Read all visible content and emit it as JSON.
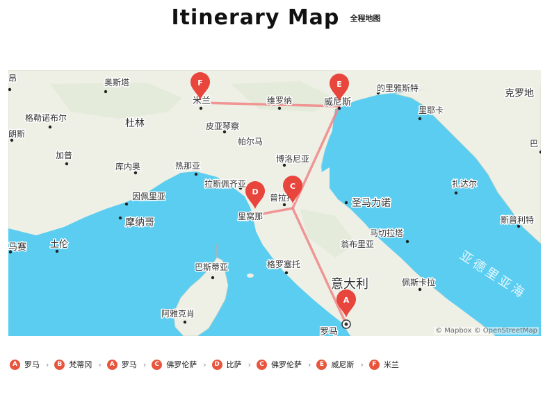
{
  "header": {
    "title": "Itinerary Map",
    "subtitle": "全程地图"
  },
  "map": {
    "attribution": "© Mapbox © OpenStreetMap",
    "colors": {
      "sea": "#5bcdf0",
      "land": "#eef0e6",
      "route": "#f08585",
      "marker": "#e8453c"
    },
    "cities": [
      {
        "name": "奥斯塔"
      },
      {
        "name": "米兰"
      },
      {
        "name": "维罗纳"
      },
      {
        "name": "威尼斯"
      },
      {
        "name": "的里雅斯特"
      },
      {
        "name": "克罗地"
      },
      {
        "name": "里耶卡"
      },
      {
        "name": "昂"
      },
      {
        "name": "格勒诺布尔"
      },
      {
        "name": "杜林"
      },
      {
        "name": "皮亚琴察"
      },
      {
        "name": "帕尔马"
      },
      {
        "name": "朗斯"
      },
      {
        "name": "加普"
      },
      {
        "name": "库内奥"
      },
      {
        "name": "热那亚"
      },
      {
        "name": "博洛尼亚"
      },
      {
        "name": "拉斯佩齐亚"
      },
      {
        "name": "普拉托"
      },
      {
        "name": "圣马力诺"
      },
      {
        "name": "巴"
      },
      {
        "name": "扎达尔"
      },
      {
        "name": "因佩里亚"
      },
      {
        "name": "摩纳哥"
      },
      {
        "name": "里窝那"
      },
      {
        "name": "马切拉塔"
      },
      {
        "name": "斯普利特"
      },
      {
        "name": "马赛"
      },
      {
        "name": "土伦"
      },
      {
        "name": "翁布里亚"
      },
      {
        "name": "巴斯蒂亚"
      },
      {
        "name": "格罗塞托"
      },
      {
        "name": "意大利"
      },
      {
        "name": "佩斯卡拉"
      },
      {
        "name": "阿雅克肖"
      },
      {
        "name": "罗马"
      },
      {
        "name": "亚德里亚海"
      }
    ],
    "markers": [
      {
        "letter": "A"
      },
      {
        "letter": "D"
      },
      {
        "letter": "C"
      },
      {
        "letter": "E"
      },
      {
        "letter": "F"
      }
    ]
  },
  "route": [
    {
      "letter": "A",
      "name": "罗马"
    },
    {
      "letter": "B",
      "name": "梵蒂冈"
    },
    {
      "letter": "A",
      "name": "罗马"
    },
    {
      "letter": "C",
      "name": "佛罗伦萨"
    },
    {
      "letter": "D",
      "name": "比萨"
    },
    {
      "letter": "C",
      "name": "佛罗伦萨"
    },
    {
      "letter": "E",
      "name": "威尼斯"
    },
    {
      "letter": "F",
      "name": "米兰"
    }
  ],
  "separator": "›"
}
